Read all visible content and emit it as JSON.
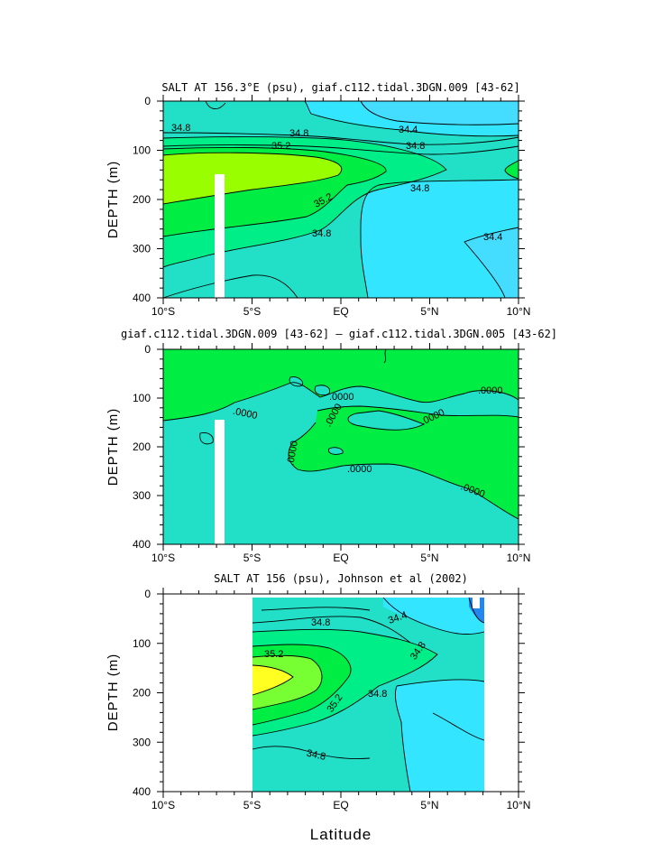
{
  "figure": {
    "xlabel": "Latitude"
  },
  "chart_data": [
    {
      "type": "contour",
      "title": "SALT AT 156.3°E (psu), giaf.c112.tidal.3DGN.009 [43-62]",
      "ylabel": "DEPTH (m)",
      "xlabel": "",
      "x_ticks": [
        "10°S",
        "5°S",
        "EQ",
        "5°N",
        "10°N"
      ],
      "y_ticks": [
        "0",
        "100",
        "200",
        "300",
        "400"
      ],
      "xlim": [
        -10,
        10
      ],
      "ylim": [
        400,
        0
      ],
      "contour_labels": [
        "34.8",
        "34.8",
        "35.2",
        "34.4",
        "34.8",
        "34.8",
        "35.2",
        "34.8",
        "34.4"
      ],
      "colors": {
        "fresh": "#33e5ff",
        "base": "#22e0c8",
        "mid": "#00ee88",
        "salty": "#00ee44",
        "max": "#99ff00"
      }
    },
    {
      "type": "contour",
      "title": "giaf.c112.tidal.3DGN.009 [43-62] – giaf.c112.tidal.3DGN.005 [43-62]",
      "ylabel": "DEPTH (m)",
      "xlabel": "",
      "x_ticks": [
        "10°S",
        "5°S",
        "EQ",
        "5°N",
        "10°N"
      ],
      "y_ticks": [
        "0",
        "100",
        "200",
        "300",
        "400"
      ],
      "xlim": [
        -10,
        10
      ],
      "ylim": [
        400,
        0
      ],
      "contour_labels": [
        ".0000",
        ".0000",
        ".0000",
        ".0000",
        ".0000",
        ".0000",
        ".0000",
        ".0000"
      ],
      "colors": {
        "negative": "#22e0c8",
        "positive": "#00ee44"
      }
    },
    {
      "type": "contour",
      "title": "SALT AT 156 (psu), Johnson et al (2002)",
      "ylabel": "DEPTH (m)",
      "xlabel": "Latitude",
      "x_ticks": [
        "10°S",
        "5°S",
        "EQ",
        "5°N",
        "10°N"
      ],
      "y_ticks": [
        "0",
        "100",
        "200",
        "300",
        "400"
      ],
      "xlim": [
        -10,
        10
      ],
      "ylim": [
        400,
        0
      ],
      "data_extent_lat": [
        -5,
        8
      ],
      "contour_labels": [
        "34.8",
        "34.4",
        "35.2",
        "34.8",
        "35.2",
        "34.8",
        "34.8"
      ],
      "colors": {
        "fresh": "#33e5ff",
        "base": "#22e0c8",
        "mid": "#00ee88",
        "salty": "#00ee44",
        "high": "#77ff33",
        "max": "#ffff22",
        "deep": "#2288ee"
      }
    }
  ]
}
